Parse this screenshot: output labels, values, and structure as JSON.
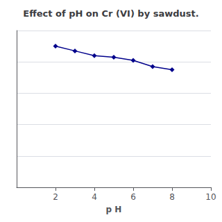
{
  "chart_data": {
    "type": "line",
    "title": "Effect of pH on Cr (VI) by sawdust.",
    "xlabel": "p H",
    "x": [
      2,
      3,
      4,
      5,
      6,
      7,
      8
    ],
    "values": [
      90,
      87,
      84,
      83,
      81,
      77,
      75
    ],
    "color": "#00008B",
    "marker": "diamond",
    "xlim": [
      0,
      10
    ],
    "ylim": [
      0,
      100
    ],
    "xticks": [
      2,
      4,
      6,
      8,
      10
    ],
    "yticks": [
      0,
      20,
      40,
      60,
      80,
      100
    ],
    "grid": true,
    "tick_labels": "x"
  }
}
